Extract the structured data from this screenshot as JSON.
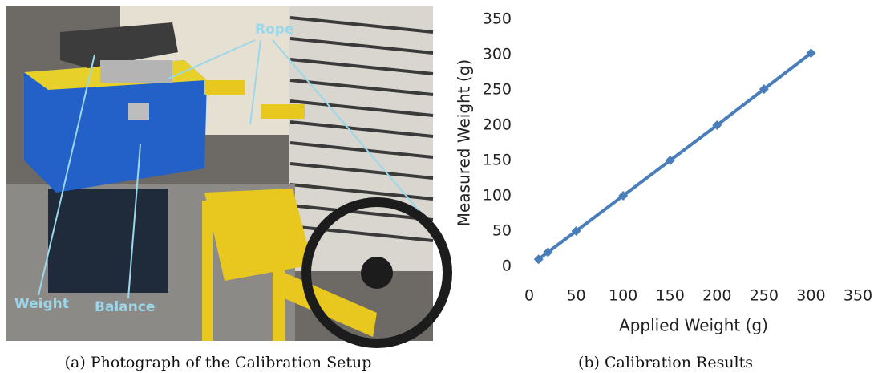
{
  "photo": {
    "labels": {
      "rope": "Rope",
      "weight": "Weight",
      "balance": "Balance"
    }
  },
  "captions": [
    "(a) Photograph of the Calibration Setup",
    "(b) Calibration Results"
  ],
  "chart_data": {
    "type": "line",
    "x_label": "Applied Weight (g)",
    "y_label": "Measured Weight (g)",
    "x": [
      10,
      20,
      50,
      100,
      150,
      200,
      250,
      300
    ],
    "series": [
      {
        "color": "#4a7ebb",
        "values": [
          10,
          20,
          50,
          100,
          150,
          200,
          251,
          302
        ]
      }
    ],
    "xlim": [
      0,
      350
    ],
    "ylim": [
      0,
      350
    ],
    "xticks": [
      0,
      50,
      100,
      150,
      200,
      250,
      300,
      350
    ],
    "yticks": [
      0,
      50,
      100,
      150,
      200,
      250,
      300,
      350
    ],
    "grid": false
  }
}
